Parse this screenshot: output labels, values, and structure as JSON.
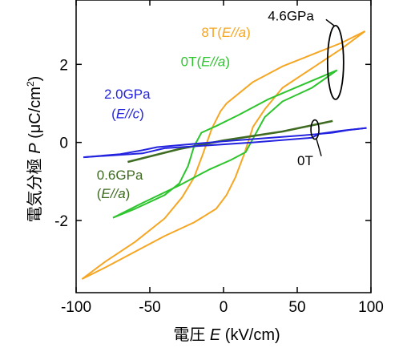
{
  "chart_data": {
    "type": "line",
    "xlabel": "電圧 E (kV/cm)",
    "ylabel": "電気分極 P (μC/cm²)",
    "xlabel_parts": {
      "prefix": "電圧 ",
      "var": "E",
      "suffix": " (kV/cm)"
    },
    "ylabel_parts": {
      "prefix": "電気分極 ",
      "var": "P",
      "suffix": " (μC/cm",
      "sup": "2",
      "close": ")"
    },
    "xlim": [
      -100,
      100
    ],
    "ylim": [
      -3.85,
      3.65
    ],
    "xticks": [
      -100,
      -50,
      0,
      50,
      100
    ],
    "yticks": [
      -2,
      0,
      2
    ],
    "grid": false,
    "colors": {
      "orange": "#F5A623",
      "green": "#2DC42D",
      "darkgreen": "#3F6B22",
      "blue": "#2323E0",
      "black": "#000000"
    },
    "series": [
      {
        "color": "orange",
        "label_id": "8T",
        "loops": [
          [
            [
              -96,
              -3.5
            ],
            [
              -80,
              -3.05
            ],
            [
              -60,
              -2.55
            ],
            [
              -40,
              -1.95
            ],
            [
              -28,
              -1.4
            ],
            [
              -20,
              -0.9
            ],
            [
              -14,
              -0.3
            ],
            [
              -8,
              0.35
            ],
            [
              -2,
              0.8
            ],
            [
              2,
              1.0
            ],
            [
              20,
              1.55
            ],
            [
              40,
              1.95
            ],
            [
              60,
              2.25
            ],
            [
              80,
              2.55
            ],
            [
              96,
              2.85
            ]
          ],
          [
            [
              96,
              2.85
            ],
            [
              80,
              2.4
            ],
            [
              60,
              1.9
            ],
            [
              40,
              1.4
            ],
            [
              28,
              0.85
            ],
            [
              20,
              0.4
            ],
            [
              14,
              -0.3
            ],
            [
              8,
              -0.9
            ],
            [
              2,
              -1.35
            ],
            [
              -5,
              -1.7
            ],
            [
              -20,
              -2.05
            ],
            [
              -40,
              -2.4
            ],
            [
              -60,
              -2.8
            ],
            [
              -80,
              -3.2
            ],
            [
              -96,
              -3.5
            ]
          ]
        ]
      },
      {
        "color": "green",
        "label_id": "0T",
        "loops": [
          [
            [
              -75,
              -1.93
            ],
            [
              -60,
              -1.7
            ],
            [
              -40,
              -1.35
            ],
            [
              -30,
              -1.05
            ],
            [
              -24,
              -0.6
            ],
            [
              -20,
              -0.1
            ],
            [
              -15,
              0.25
            ],
            [
              -5,
              0.42
            ],
            [
              10,
              0.7
            ],
            [
              30,
              1.1
            ],
            [
              55,
              1.5
            ],
            [
              77,
              1.85
            ]
          ],
          [
            [
              77,
              1.85
            ],
            [
              60,
              1.4
            ],
            [
              40,
              1.05
            ],
            [
              28,
              0.65
            ],
            [
              20,
              0.1
            ],
            [
              15,
              -0.25
            ],
            [
              5,
              -0.45
            ],
            [
              -10,
              -0.7
            ],
            [
              -30,
              -1.1
            ],
            [
              -55,
              -1.55
            ],
            [
              -75,
              -1.93
            ]
          ]
        ]
      },
      {
        "color": "darkgreen",
        "label_id": "0.6GPa",
        "loops": [
          [
            [
              -65,
              -0.5
            ],
            [
              -30,
              -0.17
            ],
            [
              0,
              0.05
            ],
            [
              40,
              0.28
            ],
            [
              74,
              0.55
            ]
          ]
        ]
      },
      {
        "color": "blue",
        "label_id": "2.0GPa",
        "loops": [
          [
            [
              -95,
              -0.38
            ],
            [
              -70,
              -0.3
            ],
            [
              -55,
              -0.2
            ],
            [
              -45,
              -0.12
            ],
            [
              0,
              0.03
            ],
            [
              60,
              0.2
            ],
            [
              74,
              0.25
            ],
            [
              85,
              0.32
            ],
            [
              97,
              0.37
            ]
          ],
          [
            [
              97,
              0.37
            ],
            [
              80,
              0.3
            ],
            [
              65,
              0.22
            ],
            [
              60,
              0.12
            ],
            [
              20,
              0.0
            ],
            [
              -40,
              -0.15
            ],
            [
              -55,
              -0.28
            ],
            [
              -75,
              -0.33
            ],
            [
              -95,
              -0.38
            ]
          ]
        ]
      }
    ],
    "annotations": [
      {
        "id": "8T",
        "text": "8T(",
        "italic": "E//a",
        "close": ")",
        "color": "orange",
        "at": [
          -15,
          2.7
        ]
      },
      {
        "id": "0T-green",
        "text": "0T(",
        "italic": "E//a",
        "close": ")",
        "color": "green",
        "at": [
          -29,
          1.95
        ]
      },
      {
        "id": "2.0GPa",
        "text": "2.0GPa",
        "color": "blue",
        "at": [
          -81,
          1.12
        ]
      },
      {
        "id": "2.0GPa-sub",
        "text": "(",
        "italic": "E//c",
        "close": ")",
        "color": "blue",
        "at": [
          -76,
          0.62
        ]
      },
      {
        "id": "0.6GPa",
        "text": "0.6GPa",
        "color": "darkgreen",
        "at": [
          -86,
          -0.95
        ]
      },
      {
        "id": "0.6GPa-sub",
        "text": "(",
        "italic": "E//a",
        "close": ")",
        "color": "darkgreen",
        "at": [
          -86,
          -1.43
        ]
      },
      {
        "id": "4.6GPa",
        "text": "4.6GPa",
        "color": "black",
        "at": [
          30,
          3.13
        ]
      },
      {
        "id": "0T-black",
        "text": "0T",
        "color": "black",
        "at": [
          50,
          -0.58
        ]
      }
    ]
  }
}
